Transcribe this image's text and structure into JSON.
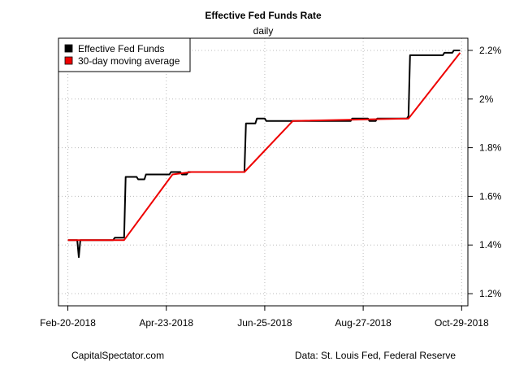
{
  "chart_data": {
    "type": "line",
    "title": "Effective Fed Funds Rate",
    "subtitle": "daily",
    "xlabel": "",
    "ylabel": "",
    "x_tick_labels": [
      "Feb-20-2018",
      "Apr-23-2018",
      "Jun-25-2018",
      "Aug-27-2018",
      "Oct-29-2018"
    ],
    "y_tick_labels": [
      "1.2%",
      "1.4%",
      "1.6%",
      "1.8%",
      "2%",
      "2.2%"
    ],
    "y_ticks": [
      1.2,
      1.4,
      1.6,
      1.8,
      2.0,
      2.2
    ],
    "xlim": [
      "2018-02-14",
      "2018-11-03"
    ],
    "ylim": [
      1.15,
      2.25
    ],
    "y_axis_side": "right",
    "grid": true,
    "legend_position": "top-left",
    "series": [
      {
        "name": "Effective Fed Funds",
        "color": "#000000",
        "points": [
          [
            "2018-02-20",
            1.42
          ],
          [
            "2018-02-26",
            1.42
          ],
          [
            "2018-02-27",
            1.35
          ],
          [
            "2018-02-28",
            1.42
          ],
          [
            "2018-03-21",
            1.42
          ],
          [
            "2018-03-22",
            1.43
          ],
          [
            "2018-03-28",
            1.43
          ],
          [
            "2018-03-29",
            1.68
          ],
          [
            "2018-04-05",
            1.68
          ],
          [
            "2018-04-06",
            1.67
          ],
          [
            "2018-04-10",
            1.67
          ],
          [
            "2018-04-11",
            1.69
          ],
          [
            "2018-04-26",
            1.69
          ],
          [
            "2018-04-27",
            1.7
          ],
          [
            "2018-05-03",
            1.7
          ],
          [
            "2018-05-04",
            1.69
          ],
          [
            "2018-05-07",
            1.69
          ],
          [
            "2018-05-08",
            1.7
          ],
          [
            "2018-06-13",
            1.7
          ],
          [
            "2018-06-14",
            1.9
          ],
          [
            "2018-06-20",
            1.9
          ],
          [
            "2018-06-21",
            1.92
          ],
          [
            "2018-06-26",
            1.92
          ],
          [
            "2018-06-27",
            1.91
          ],
          [
            "2018-08-20",
            1.91
          ],
          [
            "2018-08-21",
            1.92
          ],
          [
            "2018-08-31",
            1.92
          ],
          [
            "2018-09-01",
            1.91
          ],
          [
            "2018-09-05",
            1.91
          ],
          [
            "2018-09-06",
            1.92
          ],
          [
            "2018-09-25",
            1.92
          ],
          [
            "2018-09-26",
            1.93
          ],
          [
            "2018-09-27",
            2.18
          ],
          [
            "2018-10-18",
            2.18
          ],
          [
            "2018-10-19",
            2.19
          ],
          [
            "2018-10-24",
            2.19
          ],
          [
            "2018-10-25",
            2.2
          ],
          [
            "2018-10-29",
            2.2
          ]
        ]
      },
      {
        "name": "30-day moving average",
        "color": "#ee0000",
        "points": [
          [
            "2018-02-20",
            1.42
          ],
          [
            "2018-03-28",
            1.42
          ],
          [
            "2018-04-28",
            1.69
          ],
          [
            "2018-05-10",
            1.7
          ],
          [
            "2018-06-13",
            1.7
          ],
          [
            "2018-07-14",
            1.91
          ],
          [
            "2018-09-26",
            1.92
          ],
          [
            "2018-10-29",
            2.19
          ]
        ]
      }
    ]
  },
  "footer": {
    "left": "CapitalSpectator.com",
    "right": "Data: St. Louis Fed, Federal Reserve"
  }
}
